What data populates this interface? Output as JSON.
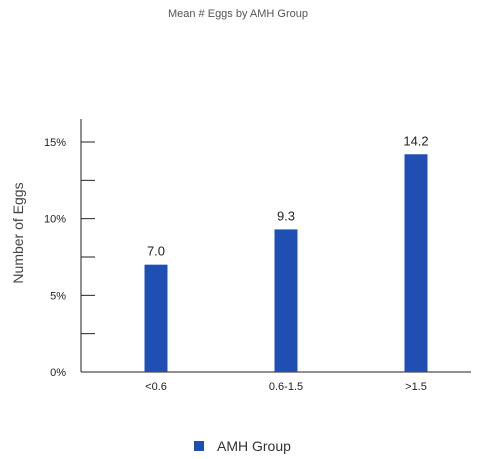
{
  "chart_data": {
    "type": "bar",
    "title": "Mean # Eggs by AMH Group",
    "xlabel": "",
    "ylabel": "Number of Eggs",
    "categories": [
      "<0.6",
      "0.6-1.5",
      ">1.5"
    ],
    "series": [
      {
        "name": "AMH Group",
        "values": [
          7.0,
          9.3,
          14.2
        ],
        "labels": [
          "7.0",
          "9.3",
          "14.2"
        ],
        "color": "#1f4fb3"
      }
    ],
    "y_ticks": [
      {
        "value": 0,
        "label": "0%"
      },
      {
        "value": 2.5,
        "label": ""
      },
      {
        "value": 5,
        "label": "5%"
      },
      {
        "value": 7.5,
        "label": ""
      },
      {
        "value": 10,
        "label": "10%"
      },
      {
        "value": 12.5,
        "label": ""
      },
      {
        "value": 15,
        "label": "15%"
      }
    ],
    "ylim": [
      0,
      16.5
    ],
    "grid": false,
    "legend_position": "bottom"
  }
}
